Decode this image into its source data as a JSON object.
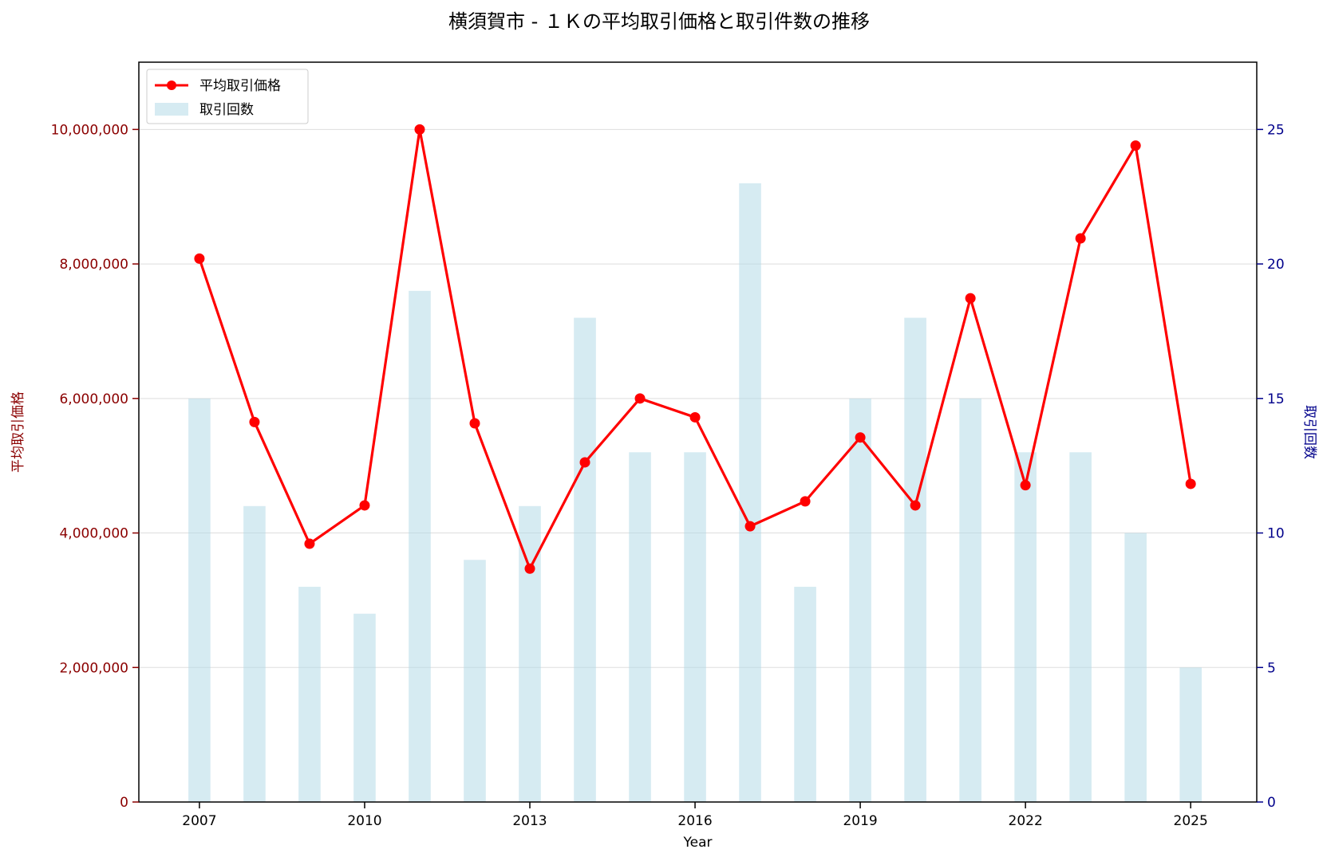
{
  "chart_data": {
    "type": "bar+line",
    "title": "横須賀市 - １Ｋの平均取引価格と取引件数の推移",
    "xlabel": "Year",
    "ylabel_left": "平均取引価格",
    "ylabel_right": "取引回数",
    "x": [
      2007,
      2008,
      2009,
      2010,
      2011,
      2012,
      2013,
      2014,
      2015,
      2016,
      2017,
      2018,
      2019,
      2020,
      2021,
      2022,
      2023,
      2024,
      2025
    ],
    "x_ticks": [
      "2007",
      "2010",
      "2013",
      "2016",
      "2019",
      "2022",
      "2025"
    ],
    "xlim": [
      2005.9,
      2026.2
    ],
    "ylim_left": [
      0,
      11000000
    ],
    "ylim_right": [
      0,
      27.5
    ],
    "left_ticks": [
      "0",
      "2,000,000",
      "4,000,000",
      "6,000,000",
      "8,000,000",
      "10,000,000"
    ],
    "right_ticks": [
      "0",
      "5",
      "10",
      "15",
      "20",
      "25"
    ],
    "series": [
      {
        "name": "平均取引価格",
        "type": "line",
        "axis": "left",
        "color": "#ff0000",
        "values": [
          8080000,
          5650000,
          3840000,
          4410000,
          10000000,
          5630000,
          3470000,
          5050000,
          6000000,
          5720000,
          4100000,
          4470000,
          5420000,
          4410000,
          7490000,
          4710000,
          8380000,
          9760000,
          4730000
        ]
      },
      {
        "name": "取引回数",
        "type": "bar",
        "axis": "right",
        "color": "#add8e6",
        "values": [
          15,
          11,
          8,
          7,
          19,
          9,
          11,
          18,
          13,
          13,
          23,
          8,
          15,
          18,
          15,
          13,
          13,
          10,
          5
        ]
      }
    ],
    "grid": true,
    "legend_position": "upper-left",
    "left_axis_color": "#8b0000",
    "right_axis_color": "#00008b"
  }
}
